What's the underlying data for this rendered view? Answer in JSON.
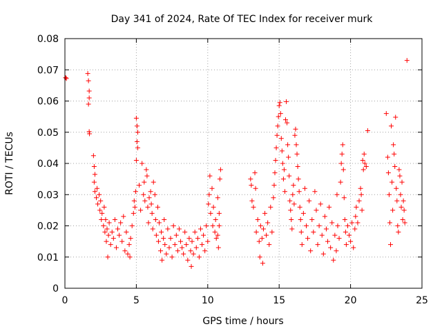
{
  "chart_data": {
    "type": "scatter",
    "title": "Day 341 of 2024, Rate Of TEC Index for receiver murk",
    "xlabel": "GPS time / hours",
    "ylabel": "ROTI / TECUs",
    "xlim": [
      0,
      25
    ],
    "ylim": [
      0,
      0.08
    ],
    "x_ticks": [
      0,
      5,
      10,
      15,
      20,
      25
    ],
    "x_tick_labels": [
      "0",
      "5",
      "10",
      "15",
      "20",
      "25"
    ],
    "y_ticks": [
      0,
      0.01,
      0.02,
      0.03,
      0.04,
      0.05,
      0.06,
      0.07,
      0.08
    ],
    "y_tick_labels": [
      "0",
      "0.01",
      "0.02",
      "0.03",
      "0.04",
      "0.05",
      "0.06",
      "0.07",
      "0.08"
    ],
    "grid": true,
    "marker": "+",
    "color": "#ff0000",
    "series": [
      {
        "name": "ROTI",
        "points": [
          [
            0.05,
            0.0675
          ],
          [
            0.1,
            0.0672
          ],
          [
            1.6,
            0.0688
          ],
          [
            1.65,
            0.0665
          ],
          [
            1.7,
            0.0632
          ],
          [
            1.7,
            0.061
          ],
          [
            1.65,
            0.059
          ],
          [
            1.7,
            0.0502
          ],
          [
            1.72,
            0.0495
          ],
          [
            2.0,
            0.0425
          ],
          [
            2.05,
            0.039
          ],
          [
            2.1,
            0.0365
          ],
          [
            2.05,
            0.034
          ],
          [
            2.1,
            0.031
          ],
          [
            2.2,
            0.029
          ],
          [
            2.25,
            0.032
          ],
          [
            2.3,
            0.027
          ],
          [
            2.4,
            0.03
          ],
          [
            2.45,
            0.025
          ],
          [
            2.5,
            0.028
          ],
          [
            2.55,
            0.022
          ],
          [
            2.6,
            0.024
          ],
          [
            2.7,
            0.02
          ],
          [
            2.75,
            0.026
          ],
          [
            2.8,
            0.018
          ],
          [
            2.85,
            0.022
          ],
          [
            2.9,
            0.015
          ],
          [
            2.95,
            0.019
          ],
          [
            3.0,
            0.01
          ],
          [
            3.05,
            0.017
          ],
          [
            3.1,
            0.021
          ],
          [
            3.2,
            0.014
          ],
          [
            3.3,
            0.018
          ],
          [
            3.4,
            0.016
          ],
          [
            3.5,
            0.022
          ],
          [
            3.6,
            0.013
          ],
          [
            3.7,
            0.019
          ],
          [
            3.8,
            0.017
          ],
          [
            3.9,
            0.021
          ],
          [
            4.0,
            0.015
          ],
          [
            4.1,
            0.023
          ],
          [
            4.2,
            0.012
          ],
          [
            4.3,
            0.018
          ],
          [
            4.4,
            0.011
          ],
          [
            4.5,
            0.014
          ],
          [
            4.55,
            0.01
          ],
          [
            4.6,
            0.016
          ],
          [
            4.7,
            0.02
          ],
          [
            4.8,
            0.024
          ],
          [
            4.85,
            0.028
          ],
          [
            4.9,
            0.026
          ],
          [
            4.95,
            0.031
          ],
          [
            5.0,
            0.0545
          ],
          [
            5.05,
            0.052
          ],
          [
            5.1,
            0.05
          ],
          [
            5.05,
            0.047
          ],
          [
            5.1,
            0.045
          ],
          [
            5.0,
            0.041
          ],
          [
            5.2,
            0.033
          ],
          [
            5.3,
            0.025
          ],
          [
            5.4,
            0.04
          ],
          [
            5.5,
            0.03
          ],
          [
            5.55,
            0.034
          ],
          [
            5.6,
            0.028
          ],
          [
            5.7,
            0.038
          ],
          [
            5.75,
            0.036
          ],
          [
            5.8,
            0.026
          ],
          [
            5.85,
            0.021
          ],
          [
            5.9,
            0.029
          ],
          [
            6.0,
            0.031
          ],
          [
            6.05,
            0.027
          ],
          [
            6.1,
            0.024
          ],
          [
            6.15,
            0.019
          ],
          [
            6.2,
            0.034
          ],
          [
            6.3,
            0.03
          ],
          [
            6.35,
            0.022
          ],
          [
            6.4,
            0.017
          ],
          [
            6.5,
            0.026
          ],
          [
            6.55,
            0.015
          ],
          [
            6.6,
            0.021
          ],
          [
            6.7,
            0.012
          ],
          [
            6.75,
            0.018
          ],
          [
            6.8,
            0.009
          ],
          [
            6.9,
            0.016
          ],
          [
            6.95,
            0.022
          ],
          [
            7.0,
            0.014
          ],
          [
            7.1,
            0.011
          ],
          [
            7.2,
            0.019
          ],
          [
            7.3,
            0.013
          ],
          [
            7.4,
            0.016
          ],
          [
            7.5,
            0.01
          ],
          [
            7.6,
            0.02
          ],
          [
            7.7,
            0.014
          ],
          [
            7.8,
            0.017
          ],
          [
            7.9,
            0.012
          ],
          [
            8.0,
            0.019
          ],
          [
            8.1,
            0.015
          ],
          [
            8.2,
            0.013
          ],
          [
            8.3,
            0.011
          ],
          [
            8.4,
            0.018
          ],
          [
            8.5,
            0.014
          ],
          [
            8.6,
            0.009
          ],
          [
            8.7,
            0.016
          ],
          [
            8.8,
            0.012
          ],
          [
            8.85,
            0.007
          ],
          [
            8.9,
            0.015
          ],
          [
            9.0,
            0.011
          ],
          [
            9.1,
            0.018
          ],
          [
            9.2,
            0.013
          ],
          [
            9.3,
            0.016
          ],
          [
            9.4,
            0.01
          ],
          [
            9.5,
            0.019
          ],
          [
            9.6,
            0.014
          ],
          [
            9.7,
            0.017
          ],
          [
            9.8,
            0.012
          ],
          [
            9.9,
            0.02
          ],
          [
            10.0,
            0.015
          ],
          [
            10.05,
            0.027
          ],
          [
            10.1,
            0.03
          ],
          [
            10.15,
            0.036
          ],
          [
            10.2,
            0.024
          ],
          [
            10.3,
            0.032
          ],
          [
            10.35,
            0.02
          ],
          [
            10.4,
            0.026
          ],
          [
            10.5,
            0.018
          ],
          [
            10.55,
            0.022
          ],
          [
            10.6,
            0.016
          ],
          [
            10.7,
            0.029
          ],
          [
            10.75,
            0.013
          ],
          [
            10.8,
            0.024
          ],
          [
            10.85,
            0.035
          ],
          [
            10.9,
            0.038
          ],
          [
            10.8,
            0.02
          ],
          [
            10.7,
            0.017
          ],
          [
            13.0,
            0.035
          ],
          [
            13.05,
            0.033
          ],
          [
            13.1,
            0.028
          ],
          [
            13.2,
            0.026
          ],
          [
            13.3,
            0.037
          ],
          [
            13.35,
            0.032
          ],
          [
            13.4,
            0.018
          ],
          [
            13.5,
            0.022
          ],
          [
            13.6,
            0.015
          ],
          [
            13.65,
            0.01
          ],
          [
            13.7,
            0.02
          ],
          [
            13.8,
            0.016
          ],
          [
            13.85,
            0.008
          ],
          [
            13.9,
            0.019
          ],
          [
            14.0,
            0.024
          ],
          [
            14.1,
            0.017
          ],
          [
            14.2,
            0.021
          ],
          [
            14.3,
            0.014
          ],
          [
            14.4,
            0.026
          ],
          [
            14.5,
            0.018
          ],
          [
            14.6,
            0.029
          ],
          [
            14.65,
            0.033
          ],
          [
            14.7,
            0.037
          ],
          [
            14.75,
            0.041
          ],
          [
            14.8,
            0.045
          ],
          [
            14.85,
            0.049
          ],
          [
            14.9,
            0.052
          ],
          [
            14.95,
            0.055
          ],
          [
            15.0,
            0.0585
          ],
          [
            15.05,
            0.0595
          ],
          [
            15.1,
            0.056
          ],
          [
            15.15,
            0.048
          ],
          [
            15.2,
            0.044
          ],
          [
            15.25,
            0.04
          ],
          [
            15.3,
            0.035
          ],
          [
            15.35,
            0.038
          ],
          [
            15.4,
            0.031
          ],
          [
            15.45,
            0.054
          ],
          [
            15.5,
            0.0598
          ],
          [
            15.55,
            0.053
          ],
          [
            15.6,
            0.046
          ],
          [
            15.65,
            0.042
          ],
          [
            15.7,
            0.036
          ],
          [
            15.75,
            0.028
          ],
          [
            15.8,
            0.025
          ],
          [
            15.85,
            0.022
          ],
          [
            15.9,
            0.019
          ],
          [
            15.95,
            0.03
          ],
          [
            16.0,
            0.033
          ],
          [
            16.05,
            0.027
          ],
          [
            16.1,
            0.049
          ],
          [
            16.15,
            0.051
          ],
          [
            16.2,
            0.046
          ],
          [
            16.25,
            0.043
          ],
          [
            16.3,
            0.039
          ],
          [
            16.35,
            0.035
          ],
          [
            16.4,
            0.031
          ],
          [
            16.45,
            0.026
          ],
          [
            16.5,
            0.022
          ],
          [
            16.55,
            0.018
          ],
          [
            16.6,
            0.014
          ],
          [
            16.7,
            0.024
          ],
          [
            16.8,
            0.032
          ],
          [
            16.9,
            0.02
          ],
          [
            17.0,
            0.016
          ],
          [
            17.1,
            0.028
          ],
          [
            17.2,
            0.012
          ],
          [
            17.3,
            0.022
          ],
          [
            17.4,
            0.018
          ],
          [
            17.5,
            0.031
          ],
          [
            17.6,
            0.025
          ],
          [
            17.7,
            0.014
          ],
          [
            17.8,
            0.02
          ],
          [
            17.9,
            0.027
          ],
          [
            18.0,
            0.017
          ],
          [
            18.1,
            0.011
          ],
          [
            18.2,
            0.023
          ],
          [
            18.3,
            0.019
          ],
          [
            18.4,
            0.015
          ],
          [
            18.5,
            0.026
          ],
          [
            18.6,
            0.013
          ],
          [
            18.7,
            0.021
          ],
          [
            18.8,
            0.009
          ],
          [
            18.9,
            0.017
          ],
          [
            19.0,
            0.012
          ],
          [
            19.05,
            0.03
          ],
          [
            19.1,
            0.02
          ],
          [
            19.2,
            0.016
          ],
          [
            19.3,
            0.034
          ],
          [
            19.35,
            0.04
          ],
          [
            19.4,
            0.043
          ],
          [
            19.45,
            0.046
          ],
          [
            19.5,
            0.038
          ],
          [
            19.55,
            0.029
          ],
          [
            19.6,
            0.022
          ],
          [
            19.65,
            0.018
          ],
          [
            19.7,
            0.014
          ],
          [
            19.8,
            0.02
          ],
          [
            19.9,
            0.017
          ],
          [
            20.0,
            0.015
          ],
          [
            20.1,
            0.021
          ],
          [
            20.2,
            0.013
          ],
          [
            20.3,
            0.019
          ],
          [
            20.35,
            0.023
          ],
          [
            20.4,
            0.026
          ],
          [
            20.5,
            0.021
          ],
          [
            20.6,
            0.028
          ],
          [
            20.7,
            0.032
          ],
          [
            20.75,
            0.03
          ],
          [
            20.8,
            0.025
          ],
          [
            20.85,
            0.041
          ],
          [
            20.9,
            0.038
          ],
          [
            20.95,
            0.043
          ],
          [
            21.0,
            0.04
          ],
          [
            21.1,
            0.039
          ],
          [
            21.2,
            0.0505
          ],
          [
            22.5,
            0.056
          ],
          [
            22.6,
            0.042
          ],
          [
            22.65,
            0.037
          ],
          [
            22.7,
            0.03
          ],
          [
            22.75,
            0.021
          ],
          [
            22.8,
            0.014
          ],
          [
            22.85,
            0.052
          ],
          [
            22.9,
            0.034
          ],
          [
            22.95,
            0.025
          ],
          [
            23.0,
            0.046
          ],
          [
            23.05,
            0.043
          ],
          [
            23.1,
            0.039
          ],
          [
            23.15,
            0.0548
          ],
          [
            23.2,
            0.032
          ],
          [
            23.25,
            0.028
          ],
          [
            23.3,
            0.02
          ],
          [
            23.35,
            0.018
          ],
          [
            23.4,
            0.038
          ],
          [
            23.45,
            0.036
          ],
          [
            23.5,
            0.03
          ],
          [
            23.55,
            0.026
          ],
          [
            23.6,
            0.034
          ],
          [
            23.65,
            0.022
          ],
          [
            23.7,
            0.028
          ],
          [
            23.75,
            0.025
          ],
          [
            23.8,
            0.021
          ],
          [
            23.95,
            0.073
          ]
        ]
      }
    ]
  }
}
